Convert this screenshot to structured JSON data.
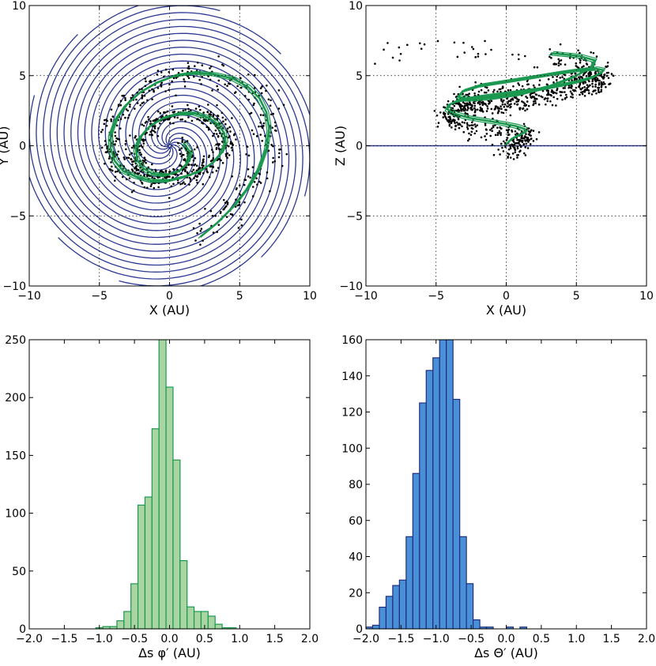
{
  "chart_data": [
    {
      "type": "scatter",
      "panel": "top-left",
      "xlabel": "X (AU)",
      "ylabel": "Y (AU)",
      "xlim": [
        -10,
        10
      ],
      "ylim": [
        -10,
        10
      ],
      "xticks": [
        "−10",
        "−5",
        "0",
        "5",
        "10"
      ],
      "yticks": [
        "−10",
        "−5",
        "0",
        "5",
        "10"
      ],
      "grid": true,
      "series": [
        {
          "kind": "spiral-lines",
          "color": "#2b3990",
          "count": 12,
          "turn_radius_per_rad": 0.95,
          "max_radius": 10.3
        },
        {
          "kind": "stream-model",
          "color": "#1a9850",
          "x": [
            1.0,
            1.5,
            1.3,
            0.7,
            -0.3,
            -1.2,
            -1.9,
            -2.3,
            -2.4,
            -2.1,
            -1.4,
            -0.4,
            0.7,
            1.8,
            2.8,
            3.5,
            3.9,
            4.0,
            3.7,
            3.1,
            2.2,
            1.1,
            -0.1,
            -1.3,
            -2.4,
            -3.3,
            -3.9,
            -4.2,
            -4.2,
            -3.8,
            -3.1,
            -2.1,
            -0.9,
            0.4,
            1.8,
            3.2,
            4.5,
            5.6,
            6.4,
            6.9,
            7.1,
            6.9,
            6.4,
            5.6,
            4.6,
            3.4,
            2.2
          ],
          "y": [
            0.2,
            -0.5,
            -1.2,
            -1.8,
            -2.1,
            -2.0,
            -1.6,
            -1.0,
            -0.2,
            0.6,
            1.4,
            2.0,
            2.3,
            2.3,
            2.0,
            1.5,
            0.9,
            0.2,
            -0.5,
            -1.2,
            -1.8,
            -2.2,
            -2.5,
            -2.5,
            -2.2,
            -1.8,
            -1.1,
            -0.2,
            0.8,
            1.9,
            2.9,
            3.8,
            4.5,
            5.0,
            5.2,
            5.1,
            4.8,
            4.2,
            3.4,
            2.4,
            1.2,
            -0.2,
            -1.6,
            -3.0,
            -4.3,
            -5.5,
            -6.5
          ]
        },
        {
          "kind": "particles",
          "color": "#000000",
          "count": 900
        }
      ]
    },
    {
      "type": "scatter",
      "panel": "top-right",
      "xlabel": "X (AU)",
      "ylabel": "Z (AU)",
      "xlim": [
        -10,
        10
      ],
      "ylim": [
        -10,
        10
      ],
      "xticks": [
        "−10",
        "−5",
        "0",
        "5",
        "10"
      ],
      "yticks": [
        "−10",
        "−5",
        "0",
        "5",
        "10"
      ],
      "grid": true,
      "series": [
        {
          "kind": "reference-line",
          "color": "#2b3990",
          "y": 0
        },
        {
          "kind": "stream-model",
          "color": "#1a9850",
          "x": [
            0.0,
            0.4,
            1.0,
            1.4,
            1.3,
            0.7,
            -0.3,
            -1.5,
            -2.7,
            -3.7,
            -4.2,
            -4.1,
            -3.5,
            -2.4,
            -1.0,
            0.6,
            2.2,
            3.8,
            5.2,
            6.2,
            6.8,
            6.9,
            6.4,
            5.3,
            3.8,
            2.0,
            0.1,
            -1.8,
            -3.1,
            -3.4,
            -2.6,
            -1.0,
            1.0,
            3.0,
            4.8,
            6.1,
            6.3,
            5.2,
            3.2
          ],
          "z": [
            0.1,
            0.5,
            0.8,
            1.0,
            1.2,
            1.4,
            1.6,
            1.8,
            2.0,
            2.3,
            2.6,
            2.9,
            3.2,
            3.4,
            3.6,
            3.8,
            4.0,
            4.3,
            4.6,
            4.9,
            5.2,
            5.4,
            5.5,
            5.4,
            5.2,
            4.9,
            4.6,
            4.3,
            3.9,
            3.5,
            3.3,
            3.4,
            3.7,
            4.2,
            4.9,
            5.6,
            6.1,
            6.4,
            6.6
          ]
        },
        {
          "kind": "particles",
          "color": "#000000",
          "count": 900
        }
      ]
    },
    {
      "type": "bar",
      "panel": "bottom-left",
      "xlabel": "Δs φ′ (AU)",
      "ylabel": "",
      "xlim": [
        -2.0,
        2.0
      ],
      "ylim": [
        0,
        250
      ],
      "xticks": [
        "−2.0",
        "−1.5",
        "−1.0",
        "−0.5",
        "0.0",
        "0.5",
        "1.0",
        "1.5",
        "2.0"
      ],
      "yticks": [
        "0",
        "50",
        "100",
        "150",
        "200",
        "250"
      ],
      "bin_width": 0.1,
      "bin_starts": [
        -1.05,
        -0.95,
        -0.85,
        -0.75,
        -0.65,
        -0.55,
        -0.45,
        -0.35,
        -0.25,
        -0.15,
        -0.05,
        0.05,
        0.15,
        0.25,
        0.35,
        0.45,
        0.55,
        0.65,
        0.75,
        0.85
      ],
      "values": [
        1,
        2,
        2,
        7,
        15,
        39,
        107,
        114,
        173,
        252,
        209,
        146,
        59,
        19,
        15,
        15,
        11,
        4,
        1,
        1
      ],
      "fill": "#a8d5a2",
      "edge": "#1a9850"
    },
    {
      "type": "bar",
      "panel": "bottom-right",
      "xlabel": "Δs Θ′ (AU)",
      "ylabel": "",
      "xlim": [
        -2.0,
        2.0
      ],
      "ylim": [
        0,
        160
      ],
      "xticks": [
        "−2.0",
        "−1.5",
        "−1.0",
        "−0.5",
        "0.0",
        "0.5",
        "1.0",
        "1.5",
        "2.0"
      ],
      "yticks": [
        "0",
        "20",
        "40",
        "60",
        "80",
        "100",
        "120",
        "140",
        "160"
      ],
      "bin_width": 0.0955,
      "bin_starts": [
        -2.0,
        -1.9045,
        -1.809,
        -1.7135,
        -1.618,
        -1.5225,
        -1.427,
        -1.3315,
        -1.236,
        -1.1405,
        -1.045,
        -0.9495,
        -0.854,
        -0.7585,
        -0.663,
        -0.5675,
        -0.472,
        -0.3765,
        -0.281,
        -0.1855,
        -0.09,
        0.0055,
        0.101,
        0.1965,
        0.292,
        0.3875,
        0.483
      ],
      "values": [
        1,
        2,
        12,
        18,
        24,
        27,
        51,
        86,
        125,
        143,
        150,
        160,
        160,
        127,
        51,
        25,
        5,
        1,
        1,
        0,
        0,
        1,
        0,
        1,
        0,
        0,
        0
      ],
      "fill": "#4a90d9",
      "edge": "#1f2e7a"
    }
  ]
}
